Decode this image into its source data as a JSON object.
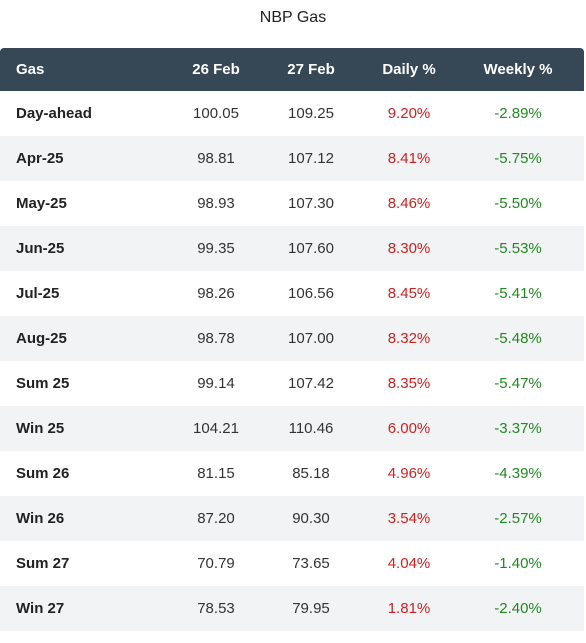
{
  "title": "NBP Gas",
  "columns": [
    "Gas",
    "26 Feb",
    "27 Feb",
    "Daily %",
    "Weekly %"
  ],
  "colors": {
    "header_bg": "#364756",
    "daily": "#cc2222",
    "weekly": "#228822",
    "alt_row": "#f2f3f5"
  },
  "rows": [
    {
      "gas": "Day-ahead",
      "feb26": "100.05",
      "feb27": "109.25",
      "daily": "9.20%",
      "weekly": "-2.89%"
    },
    {
      "gas": "Apr-25",
      "feb26": "98.81",
      "feb27": "107.12",
      "daily": "8.41%",
      "weekly": "-5.75%"
    },
    {
      "gas": "May-25",
      "feb26": "98.93",
      "feb27": "107.30",
      "daily": "8.46%",
      "weekly": "-5.50%"
    },
    {
      "gas": "Jun-25",
      "feb26": "99.35",
      "feb27": "107.60",
      "daily": "8.30%",
      "weekly": "-5.53%"
    },
    {
      "gas": "Jul-25",
      "feb26": "98.26",
      "feb27": "106.56",
      "daily": "8.45%",
      "weekly": "-5.41%"
    },
    {
      "gas": "Aug-25",
      "feb26": "98.78",
      "feb27": "107.00",
      "daily": "8.32%",
      "weekly": "-5.48%"
    },
    {
      "gas": "Sum 25",
      "feb26": "99.14",
      "feb27": "107.42",
      "daily": "8.35%",
      "weekly": "-5.47%"
    },
    {
      "gas": "Win 25",
      "feb26": "104.21",
      "feb27": "110.46",
      "daily": "6.00%",
      "weekly": "-3.37%"
    },
    {
      "gas": "Sum 26",
      "feb26": "81.15",
      "feb27": "85.18",
      "daily": "4.96%",
      "weekly": "-4.39%"
    },
    {
      "gas": "Win 26",
      "feb26": "87.20",
      "feb27": "90.30",
      "daily": "3.54%",
      "weekly": "-2.57%"
    },
    {
      "gas": "Sum 27",
      "feb26": "70.79",
      "feb27": "73.65",
      "daily": "4.04%",
      "weekly": "-1.40%"
    },
    {
      "gas": "Win 27",
      "feb26": "78.53",
      "feb27": "79.95",
      "daily": "1.81%",
      "weekly": "-2.40%"
    }
  ]
}
